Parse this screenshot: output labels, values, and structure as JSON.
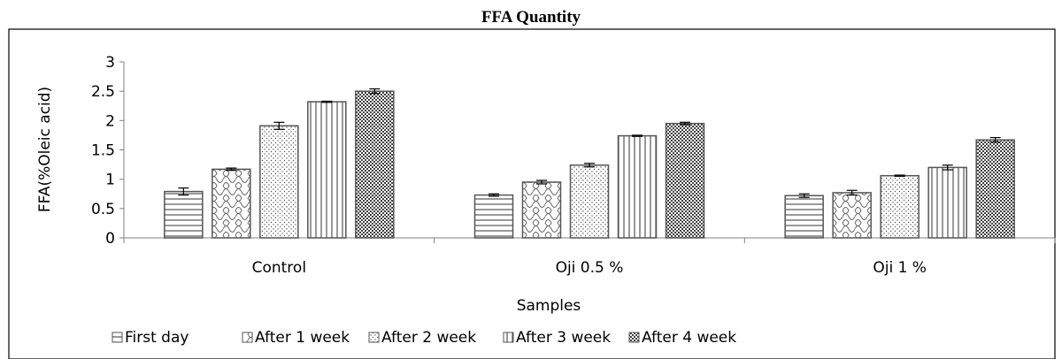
{
  "chart_data": {
    "type": "bar",
    "title": "FFA Quantity",
    "xlabel": "Samples",
    "ylabel": "FFA(%Oleic acid)",
    "ylim": [
      0,
      3
    ],
    "yticks": [
      "0",
      "0.5",
      "1",
      "1.5",
      "2",
      "2.5",
      "3"
    ],
    "grid": false,
    "legend_position": "bottom",
    "categories": [
      "Control",
      "Oji 0.5 %",
      "Oji 1 %"
    ],
    "series": [
      {
        "name": "First day",
        "pattern": "horizontal-lines",
        "values": [
          0.79,
          0.73,
          0.72
        ],
        "errors": [
          0.06,
          0.02,
          0.03
        ]
      },
      {
        "name": "After 1 week",
        "pattern": "wave",
        "values": [
          1.17,
          0.95,
          0.77
        ],
        "errors": [
          0.02,
          0.03,
          0.04
        ]
      },
      {
        "name": "After 2 week",
        "pattern": "dots",
        "values": [
          1.91,
          1.24,
          1.06
        ],
        "errors": [
          0.06,
          0.03,
          0.01
        ]
      },
      {
        "name": "After 3 week",
        "pattern": "vertical-lines",
        "values": [
          2.32,
          1.74,
          1.2
        ],
        "errors": [
          0.01,
          0.01,
          0.04
        ]
      },
      {
        "name": "After 4 week",
        "pattern": "checker",
        "values": [
          2.5,
          1.95,
          1.67
        ],
        "errors": [
          0.04,
          0.02,
          0.04
        ]
      }
    ]
  }
}
